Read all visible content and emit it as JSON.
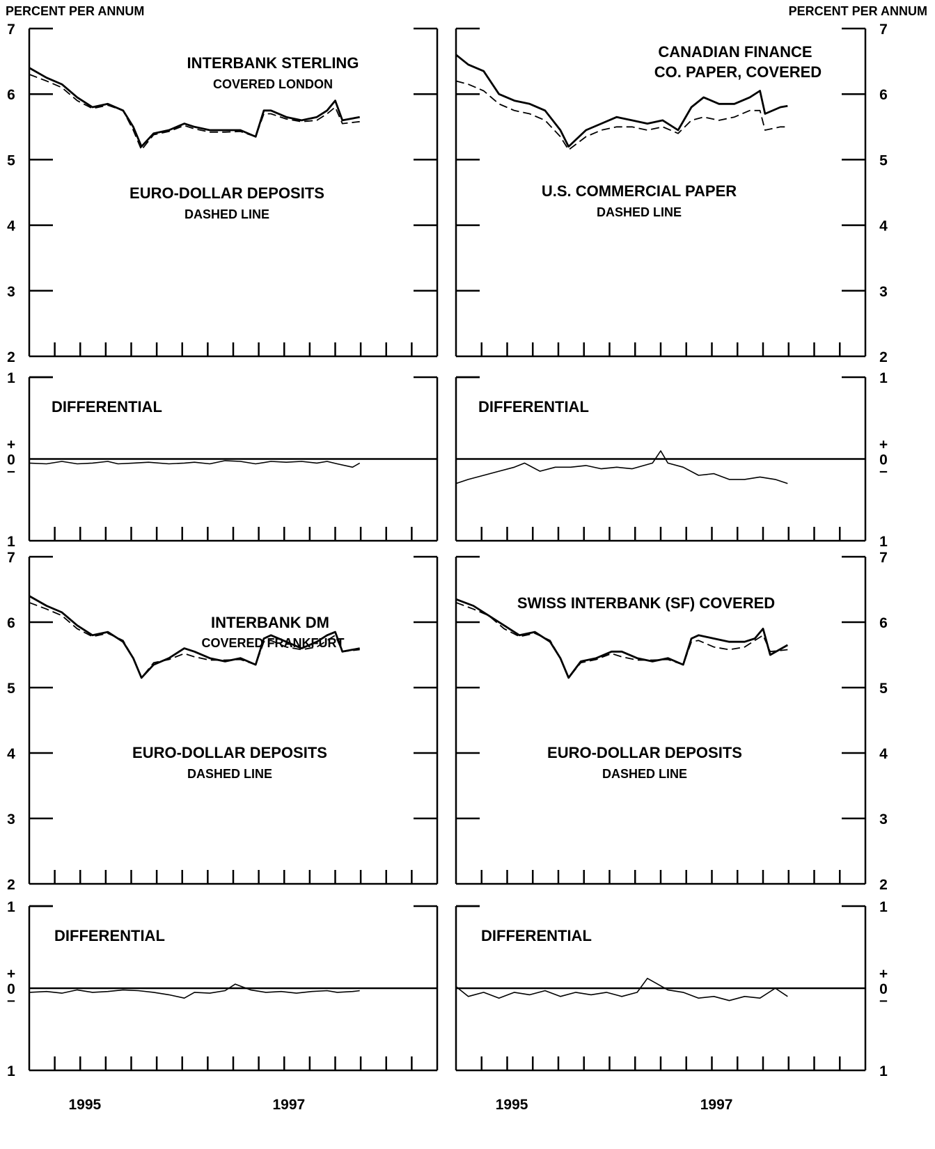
{
  "figure": {
    "left_axis_title": "PERCENT PER ANNUM",
    "right_axis_title": "PERCENT PER ANNUM",
    "year_labels": [
      "1995",
      "1997"
    ]
  },
  "chart_data": [
    {
      "type": "line",
      "title": "INTERBANK STERLING",
      "subtitle": "COVERED LONDON",
      "ylabel": "PERCENT PER ANNUM",
      "ylim": [
        2,
        7
      ],
      "yticks": [
        "2",
        "3",
        "4",
        "5",
        "6",
        "7"
      ],
      "xlabels": [
        "1995",
        "1997"
      ],
      "notes": [
        "EURO-DOLLAR DEPOSITS",
        "DASHED LINE"
      ],
      "series": [
        {
          "name": "INTERBANK STERLING COVERED LONDON",
          "style": "solid",
          "x": [
            1994.58,
            1994.75,
            1994.9,
            1995.05,
            1995.2,
            1995.35,
            1995.5,
            1995.6,
            1995.68,
            1995.8,
            1995.95,
            1996.1,
            1996.2,
            1996.35,
            1996.5,
            1996.65,
            1996.8,
            1996.88,
            1996.95,
            1997.1,
            1997.25,
            1997.4,
            1997.5,
            1997.58,
            1997.65,
            1997.82
          ],
          "values": [
            6.4,
            6.25,
            6.15,
            5.95,
            5.8,
            5.85,
            5.75,
            5.5,
            5.2,
            5.4,
            5.45,
            5.55,
            5.5,
            5.45,
            5.45,
            5.45,
            5.35,
            5.75,
            5.75,
            5.65,
            5.6,
            5.65,
            5.75,
            5.9,
            5.6,
            5.65
          ]
        },
        {
          "name": "EURO-DOLLAR DEPOSITS",
          "style": "dashed",
          "x": [
            1994.58,
            1994.75,
            1994.9,
            1995.05,
            1995.2,
            1995.35,
            1995.5,
            1995.6,
            1995.68,
            1995.8,
            1995.95,
            1996.1,
            1996.2,
            1996.35,
            1996.5,
            1996.65,
            1996.8,
            1996.88,
            1996.95,
            1997.1,
            1997.25,
            1997.4,
            1997.5,
            1997.58,
            1997.65,
            1997.82
          ],
          "values": [
            6.3,
            6.2,
            6.1,
            5.9,
            5.78,
            5.83,
            5.75,
            5.45,
            5.15,
            5.38,
            5.43,
            5.52,
            5.47,
            5.42,
            5.42,
            5.43,
            5.35,
            5.7,
            5.7,
            5.62,
            5.58,
            5.6,
            5.7,
            5.8,
            5.55,
            5.58
          ]
        }
      ]
    },
    {
      "type": "line",
      "title": "DIFFERENTIAL",
      "ylim": [
        -1,
        1
      ],
      "yticks": [
        "1",
        "+",
        "0",
        "–",
        "1"
      ],
      "series": [
        {
          "name": "DIFFERENTIAL",
          "style": "solid",
          "x": [
            1994.58,
            1994.75,
            1994.9,
            1995.05,
            1995.2,
            1995.35,
            1995.45,
            1995.6,
            1995.75,
            1995.95,
            1996.1,
            1996.2,
            1996.35,
            1996.5,
            1996.65,
            1996.8,
            1996.95,
            1997.1,
            1997.25,
            1997.4,
            1997.5,
            1997.6,
            1997.75,
            1997.82
          ],
          "values": [
            -0.05,
            -0.06,
            -0.03,
            -0.06,
            -0.05,
            -0.03,
            -0.06,
            -0.05,
            -0.04,
            -0.06,
            -0.05,
            -0.04,
            -0.06,
            -0.02,
            -0.03,
            -0.06,
            -0.03,
            -0.04,
            -0.03,
            -0.05,
            -0.03,
            -0.06,
            -0.1,
            -0.05
          ]
        }
      ]
    },
    {
      "type": "line",
      "title": "CANADIAN FINANCE",
      "subtitle": "CO. PAPER, COVERED",
      "ylabel": "PERCENT PER ANNUM",
      "ylim": [
        2,
        7
      ],
      "yticks": [
        "2",
        "3",
        "4",
        "5",
        "6",
        "7"
      ],
      "xlabels": [
        "1995",
        "1997"
      ],
      "notes": [
        "U.S. COMMERCIAL PAPER",
        "DASHED LINE"
      ],
      "series": [
        {
          "name": "CANADIAN FINANCE CO. PAPER, COVERED",
          "style": "solid",
          "x": [
            1994.58,
            1994.7,
            1994.85,
            1995.0,
            1995.15,
            1995.3,
            1995.45,
            1995.6,
            1995.68,
            1995.85,
            1996.0,
            1996.15,
            1996.3,
            1996.45,
            1996.6,
            1996.75,
            1996.88,
            1997.0,
            1997.15,
            1997.3,
            1997.45,
            1997.55,
            1997.6,
            1997.75,
            1997.82
          ],
          "values": [
            6.6,
            6.45,
            6.35,
            6.0,
            5.9,
            5.85,
            5.75,
            5.45,
            5.2,
            5.45,
            5.55,
            5.65,
            5.6,
            5.55,
            5.6,
            5.45,
            5.8,
            5.95,
            5.85,
            5.85,
            5.95,
            6.05,
            5.7,
            5.8,
            5.82
          ]
        },
        {
          "name": "U.S. COMMERCIAL PAPER",
          "style": "dashed",
          "x": [
            1994.58,
            1994.7,
            1994.85,
            1995.0,
            1995.15,
            1995.3,
            1995.45,
            1995.6,
            1995.68,
            1995.85,
            1996.0,
            1996.15,
            1996.3,
            1996.45,
            1996.6,
            1996.75,
            1996.88,
            1997.0,
            1997.15,
            1997.3,
            1997.45,
            1997.55,
            1997.6,
            1997.75,
            1997.82
          ],
          "values": [
            6.2,
            6.15,
            6.05,
            5.85,
            5.75,
            5.7,
            5.6,
            5.35,
            5.15,
            5.35,
            5.45,
            5.5,
            5.5,
            5.45,
            5.5,
            5.4,
            5.6,
            5.65,
            5.6,
            5.65,
            5.75,
            5.75,
            5.45,
            5.5,
            5.5
          ]
        }
      ]
    },
    {
      "type": "line",
      "title": "DIFFERENTIAL",
      "ylim": [
        -1,
        1
      ],
      "yticks": [
        "1",
        "+",
        "0",
        "–",
        "1"
      ],
      "series": [
        {
          "name": "DIFFERENTIAL",
          "style": "solid",
          "x": [
            1994.58,
            1994.7,
            1994.85,
            1995.0,
            1995.15,
            1995.25,
            1995.4,
            1995.55,
            1995.7,
            1995.85,
            1996.0,
            1996.15,
            1996.3,
            1996.5,
            1996.58,
            1996.65,
            1996.8,
            1996.95,
            1997.1,
            1997.25,
            1997.4,
            1997.55,
            1997.7,
            1997.82
          ],
          "values": [
            -0.3,
            -0.25,
            -0.2,
            -0.15,
            -0.1,
            -0.05,
            -0.15,
            -0.1,
            -0.1,
            -0.08,
            -0.12,
            -0.1,
            -0.12,
            -0.05,
            0.1,
            -0.05,
            -0.1,
            -0.2,
            -0.18,
            -0.25,
            -0.25,
            -0.22,
            -0.25,
            -0.3
          ]
        }
      ]
    },
    {
      "type": "line",
      "title": "INTERBANK DM",
      "subtitle": "COVERED FRANKFURT",
      "ylabel": "PERCENT PER ANNUM",
      "ylim": [
        2,
        7
      ],
      "yticks": [
        "2",
        "3",
        "4",
        "5",
        "6",
        "7"
      ],
      "xlabels": [
        "1995",
        "1997"
      ],
      "notes": [
        "EURO-DOLLAR DEPOSITS",
        "DASHED LINE"
      ],
      "series": [
        {
          "name": "INTERBANK DM COVERED FRANKFURT",
          "style": "solid",
          "x": [
            1994.58,
            1994.75,
            1994.9,
            1995.05,
            1995.2,
            1995.35,
            1995.5,
            1995.6,
            1995.68,
            1995.8,
            1995.95,
            1996.1,
            1996.2,
            1996.35,
            1996.5,
            1996.65,
            1996.8,
            1996.88,
            1996.95,
            1997.1,
            1997.25,
            1997.4,
            1997.5,
            1997.58,
            1997.65,
            1997.82
          ],
          "values": [
            6.4,
            6.25,
            6.15,
            5.95,
            5.8,
            5.85,
            5.7,
            5.45,
            5.15,
            5.35,
            5.45,
            5.6,
            5.55,
            5.45,
            5.4,
            5.45,
            5.35,
            5.75,
            5.8,
            5.7,
            5.6,
            5.7,
            5.8,
            5.85,
            5.55,
            5.6
          ]
        },
        {
          "name": "EURO-DOLLAR DEPOSITS",
          "style": "dashed",
          "x": [
            1994.58,
            1994.75,
            1994.9,
            1995.05,
            1995.2,
            1995.35,
            1995.5,
            1995.6,
            1995.68,
            1995.8,
            1995.95,
            1996.1,
            1996.2,
            1996.35,
            1996.5,
            1996.65,
            1996.8,
            1996.88,
            1996.95,
            1997.1,
            1997.25,
            1997.4,
            1997.5,
            1997.58,
            1997.65,
            1997.82
          ],
          "values": [
            6.3,
            6.2,
            6.1,
            5.9,
            5.78,
            5.83,
            5.72,
            5.45,
            5.15,
            5.38,
            5.43,
            5.52,
            5.47,
            5.42,
            5.42,
            5.43,
            5.35,
            5.7,
            5.72,
            5.62,
            5.58,
            5.62,
            5.72,
            5.8,
            5.55,
            5.58
          ]
        }
      ]
    },
    {
      "type": "line",
      "title": "DIFFERENTIAL",
      "ylim": [
        -1,
        1
      ],
      "yticks": [
        "1",
        "+",
        "0",
        "–",
        "1"
      ],
      "series": [
        {
          "name": "DIFFERENTIAL",
          "style": "solid",
          "x": [
            1994.58,
            1994.75,
            1994.9,
            1995.05,
            1995.2,
            1995.35,
            1995.5,
            1995.65,
            1995.8,
            1995.95,
            1996.1,
            1996.2,
            1996.35,
            1996.5,
            1996.6,
            1996.75,
            1996.9,
            1997.05,
            1997.2,
            1997.35,
            1997.5,
            1997.6,
            1997.75,
            1997.82
          ],
          "values": [
            -0.05,
            -0.04,
            -0.06,
            -0.02,
            -0.05,
            -0.04,
            -0.02,
            -0.03,
            -0.05,
            -0.08,
            -0.12,
            -0.05,
            -0.06,
            -0.03,
            0.05,
            -0.02,
            -0.05,
            -0.04,
            -0.06,
            -0.04,
            -0.03,
            -0.05,
            -0.04,
            -0.03
          ]
        }
      ]
    },
    {
      "type": "line",
      "title": "SWISS INTERBANK (SF) COVERED",
      "ylabel": "PERCENT PER ANNUM",
      "ylim": [
        2,
        7
      ],
      "yticks": [
        "2",
        "3",
        "4",
        "5",
        "6",
        "7"
      ],
      "xlabels": [
        "1995",
        "1997"
      ],
      "notes": [
        "EURO-DOLLAR DEPOSITS",
        "DASHED LINE"
      ],
      "series": [
        {
          "name": "SWISS INTERBANK (SF) COVERED",
          "style": "solid",
          "x": [
            1994.58,
            1994.75,
            1994.9,
            1995.05,
            1995.2,
            1995.35,
            1995.5,
            1995.6,
            1995.68,
            1995.8,
            1995.95,
            1996.1,
            1996.2,
            1996.35,
            1996.5,
            1996.65,
            1996.8,
            1996.88,
            1996.95,
            1997.1,
            1997.25,
            1997.4,
            1997.5,
            1997.58,
            1997.65,
            1997.82
          ],
          "values": [
            6.35,
            6.25,
            6.1,
            5.95,
            5.8,
            5.85,
            5.7,
            5.45,
            5.15,
            5.4,
            5.45,
            5.55,
            5.55,
            5.45,
            5.4,
            5.45,
            5.35,
            5.75,
            5.8,
            5.75,
            5.7,
            5.7,
            5.75,
            5.9,
            5.5,
            5.65
          ]
        },
        {
          "name": "EURO-DOLLAR DEPOSITS",
          "style": "dashed",
          "x": [
            1994.58,
            1994.75,
            1994.9,
            1995.05,
            1995.2,
            1995.35,
            1995.5,
            1995.6,
            1995.68,
            1995.8,
            1995.95,
            1996.1,
            1996.2,
            1996.35,
            1996.5,
            1996.65,
            1996.8,
            1996.88,
            1996.95,
            1997.1,
            1997.25,
            1997.4,
            1997.5,
            1997.58,
            1997.65,
            1997.82
          ],
          "values": [
            6.3,
            6.2,
            6.1,
            5.9,
            5.78,
            5.83,
            5.72,
            5.45,
            5.15,
            5.38,
            5.43,
            5.52,
            5.47,
            5.42,
            5.42,
            5.43,
            5.35,
            5.7,
            5.72,
            5.62,
            5.58,
            5.62,
            5.72,
            5.8,
            5.55,
            5.58
          ]
        }
      ]
    },
    {
      "type": "line",
      "title": "DIFFERENTIAL",
      "ylim": [
        -1,
        1
      ],
      "yticks": [
        "1",
        "+",
        "0",
        "–",
        "1"
      ],
      "series": [
        {
          "name": "DIFFERENTIAL",
          "style": "solid",
          "x": [
            1994.58,
            1994.7,
            1994.85,
            1995.0,
            1995.15,
            1995.3,
            1995.45,
            1995.6,
            1995.75,
            1995.9,
            1996.05,
            1996.2,
            1996.35,
            1996.45,
            1996.55,
            1996.65,
            1996.8,
            1996.95,
            1997.1,
            1997.25,
            1997.4,
            1997.55,
            1997.7,
            1997.82
          ],
          "values": [
            0.02,
            -0.1,
            -0.05,
            -0.12,
            -0.05,
            -0.08,
            -0.03,
            -0.1,
            -0.05,
            -0.08,
            -0.05,
            -0.1,
            -0.05,
            0.12,
            0.05,
            -0.02,
            -0.05,
            -0.12,
            -0.1,
            -0.15,
            -0.1,
            -0.12,
            0.0,
            -0.1
          ]
        }
      ]
    }
  ]
}
